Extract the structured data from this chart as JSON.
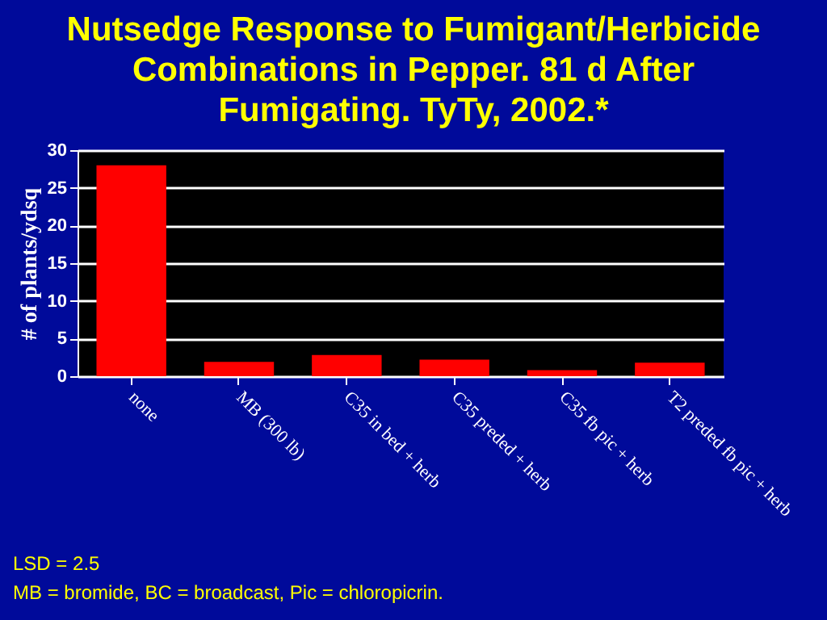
{
  "chart_data": {
    "type": "bar",
    "title": "Nutsedge Response to Fumigant/Herbicide Combinations in Pepper.  81 d After Fumigating. TyTy, 2002.*",
    "ylabel": "# of plants/ydsq",
    "categories": [
      "none",
      "MB (300 lb)",
      "C35 in bed + herb",
      "C35 preded + herb",
      "C35 fb pic + herb",
      "T2 preded fb pic + herb"
    ],
    "values": [
      28,
      1.9,
      2.8,
      2.2,
      0.8,
      1.8
    ],
    "color": "#ff0000",
    "ylim": [
      0,
      30
    ],
    "yticks": [
      0,
      5,
      10,
      15,
      20,
      25,
      30
    ],
    "grid": "y",
    "annotations": [
      "LSD = 2.5",
      "MB = bromide, BC = broadcast, Pic = chloropicrin."
    ]
  }
}
